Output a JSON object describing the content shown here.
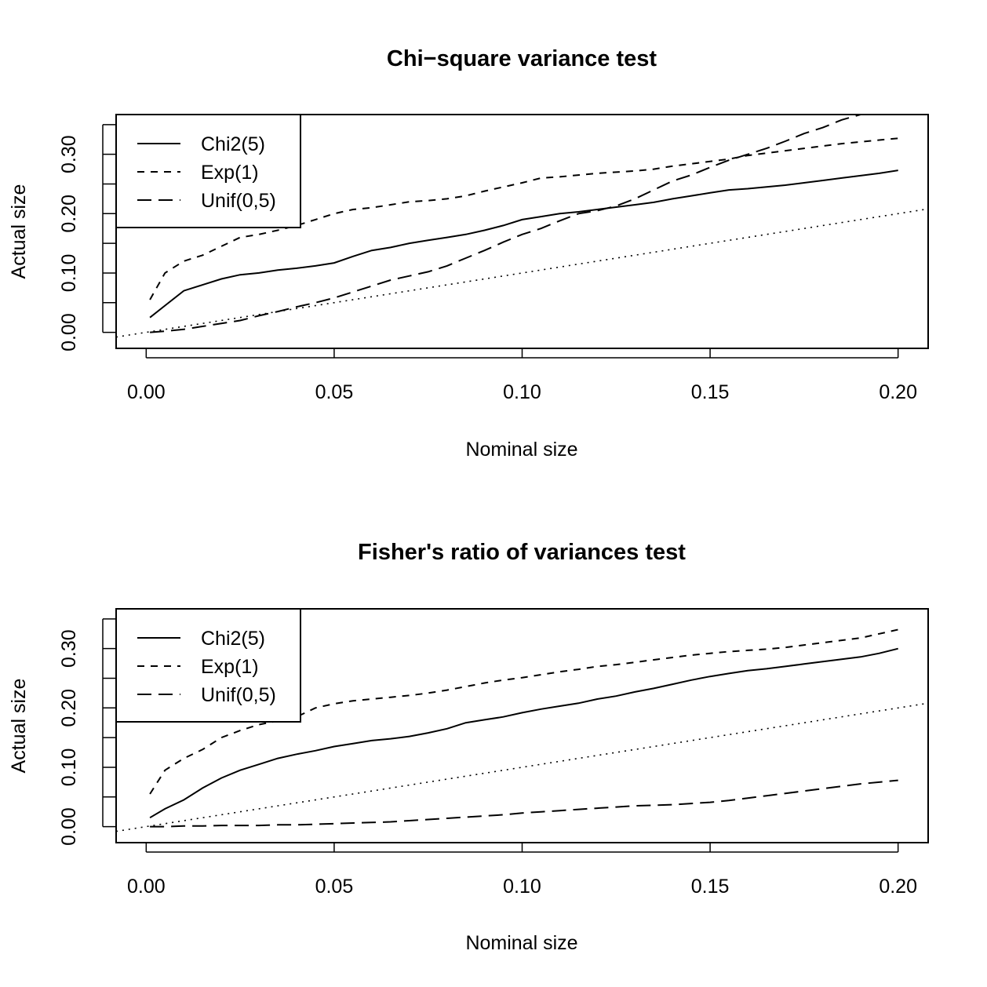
{
  "chart_data": [
    {
      "type": "line",
      "title": "Chi−square variance test",
      "xlabel": "Nominal size",
      "ylabel": "Actual size",
      "xlim": [
        -0.008,
        0.208
      ],
      "ylim": [
        -0.027,
        0.367
      ],
      "x_ticks": [
        0.0,
        0.05,
        0.1,
        0.15,
        0.2
      ],
      "x_tick_labels": [
        "0.00",
        "0.05",
        "0.10",
        "0.15",
        "0.20"
      ],
      "y_ticks": [
        0.0,
        0.05,
        0.1,
        0.15,
        0.2,
        0.25,
        0.3,
        0.35
      ],
      "y_tick_labels": [
        "0.00",
        "",
        "0.10",
        "",
        "0.20",
        "",
        "0.30",
        ""
      ],
      "grid": false,
      "legend": "top-left",
      "reference_line": {
        "x": [
          -0.008,
          0.208
        ],
        "y": [
          -0.008,
          0.208
        ]
      },
      "series": [
        {
          "name": "Chi2(5)",
          "linestyle": "solid",
          "x": [
            0.001,
            0.005,
            0.01,
            0.015,
            0.02,
            0.025,
            0.03,
            0.035,
            0.04,
            0.045,
            0.05,
            0.055,
            0.06,
            0.065,
            0.07,
            0.075,
            0.08,
            0.085,
            0.09,
            0.095,
            0.1,
            0.105,
            0.11,
            0.115,
            0.12,
            0.125,
            0.13,
            0.135,
            0.14,
            0.145,
            0.15,
            0.155,
            0.16,
            0.165,
            0.17,
            0.175,
            0.18,
            0.185,
            0.19,
            0.195,
            0.2
          ],
          "y": [
            0.025,
            0.045,
            0.07,
            0.08,
            0.09,
            0.097,
            0.1,
            0.105,
            0.108,
            0.112,
            0.117,
            0.128,
            0.138,
            0.143,
            0.15,
            0.155,
            0.16,
            0.165,
            0.172,
            0.18,
            0.19,
            0.195,
            0.2,
            0.203,
            0.207,
            0.211,
            0.215,
            0.219,
            0.225,
            0.23,
            0.235,
            0.24,
            0.242,
            0.245,
            0.248,
            0.252,
            0.256,
            0.26,
            0.264,
            0.268,
            0.273
          ]
        },
        {
          "name": "Exp(1)",
          "linestyle": "dashed",
          "x": [
            0.001,
            0.005,
            0.01,
            0.015,
            0.02,
            0.025,
            0.03,
            0.035,
            0.04,
            0.045,
            0.05,
            0.055,
            0.06,
            0.065,
            0.07,
            0.075,
            0.08,
            0.085,
            0.09,
            0.095,
            0.1,
            0.105,
            0.11,
            0.115,
            0.12,
            0.125,
            0.13,
            0.135,
            0.14,
            0.145,
            0.15,
            0.155,
            0.16,
            0.165,
            0.17,
            0.175,
            0.18,
            0.185,
            0.19,
            0.195,
            0.2
          ],
          "y": [
            0.055,
            0.1,
            0.12,
            0.13,
            0.145,
            0.16,
            0.165,
            0.172,
            0.18,
            0.19,
            0.2,
            0.207,
            0.21,
            0.215,
            0.22,
            0.222,
            0.225,
            0.23,
            0.238,
            0.245,
            0.252,
            0.26,
            0.262,
            0.265,
            0.268,
            0.27,
            0.272,
            0.275,
            0.28,
            0.284,
            0.288,
            0.292,
            0.298,
            0.302,
            0.306,
            0.31,
            0.314,
            0.318,
            0.321,
            0.324,
            0.327
          ]
        },
        {
          "name": "Unif(0,5)",
          "linestyle": "longdash",
          "x": [
            0.001,
            0.005,
            0.01,
            0.015,
            0.02,
            0.025,
            0.03,
            0.035,
            0.04,
            0.045,
            0.05,
            0.055,
            0.06,
            0.065,
            0.07,
            0.075,
            0.08,
            0.085,
            0.09,
            0.095,
            0.1,
            0.105,
            0.11,
            0.115,
            0.12,
            0.125,
            0.13,
            0.135,
            0.14,
            0.145,
            0.15,
            0.155,
            0.16,
            0.165,
            0.17,
            0.175,
            0.18,
            0.185,
            0.19
          ],
          "y": [
            0.0,
            0.002,
            0.005,
            0.01,
            0.015,
            0.02,
            0.028,
            0.035,
            0.043,
            0.05,
            0.058,
            0.068,
            0.078,
            0.088,
            0.095,
            0.102,
            0.112,
            0.125,
            0.138,
            0.152,
            0.165,
            0.175,
            0.188,
            0.2,
            0.205,
            0.213,
            0.225,
            0.24,
            0.255,
            0.265,
            0.278,
            0.29,
            0.3,
            0.31,
            0.322,
            0.335,
            0.345,
            0.358,
            0.367
          ]
        }
      ]
    },
    {
      "type": "line",
      "title": "Fisher's ratio of variances test",
      "xlabel": "Nominal size",
      "ylabel": "Actual size",
      "xlim": [
        -0.008,
        0.208
      ],
      "ylim": [
        -0.027,
        0.367
      ],
      "x_ticks": [
        0.0,
        0.05,
        0.1,
        0.15,
        0.2
      ],
      "x_tick_labels": [
        "0.00",
        "0.05",
        "0.10",
        "0.15",
        "0.20"
      ],
      "y_ticks": [
        0.0,
        0.05,
        0.1,
        0.15,
        0.2,
        0.25,
        0.3,
        0.35
      ],
      "y_tick_labels": [
        "0.00",
        "",
        "0.10",
        "",
        "0.20",
        "",
        "0.30",
        ""
      ],
      "grid": false,
      "legend": "top-left",
      "reference_line": {
        "x": [
          -0.008,
          0.208
        ],
        "y": [
          -0.008,
          0.208
        ]
      },
      "series": [
        {
          "name": "Chi2(5)",
          "linestyle": "solid",
          "x": [
            0.001,
            0.005,
            0.01,
            0.015,
            0.02,
            0.025,
            0.03,
            0.035,
            0.04,
            0.045,
            0.05,
            0.055,
            0.06,
            0.065,
            0.07,
            0.075,
            0.08,
            0.085,
            0.09,
            0.095,
            0.1,
            0.105,
            0.11,
            0.115,
            0.12,
            0.125,
            0.13,
            0.135,
            0.14,
            0.145,
            0.15,
            0.155,
            0.16,
            0.165,
            0.17,
            0.175,
            0.18,
            0.185,
            0.19,
            0.195,
            0.2
          ],
          "y": [
            0.015,
            0.03,
            0.045,
            0.065,
            0.082,
            0.095,
            0.105,
            0.115,
            0.122,
            0.128,
            0.135,
            0.14,
            0.145,
            0.148,
            0.152,
            0.158,
            0.165,
            0.175,
            0.18,
            0.185,
            0.192,
            0.198,
            0.203,
            0.208,
            0.215,
            0.22,
            0.227,
            0.233,
            0.24,
            0.247,
            0.253,
            0.258,
            0.263,
            0.266,
            0.27,
            0.274,
            0.278,
            0.282,
            0.286,
            0.292,
            0.3
          ]
        },
        {
          "name": "Exp(1)",
          "linestyle": "dashed",
          "x": [
            0.001,
            0.005,
            0.01,
            0.015,
            0.02,
            0.025,
            0.03,
            0.035,
            0.04,
            0.045,
            0.05,
            0.055,
            0.06,
            0.065,
            0.07,
            0.075,
            0.08,
            0.085,
            0.09,
            0.095,
            0.1,
            0.105,
            0.11,
            0.115,
            0.12,
            0.125,
            0.13,
            0.135,
            0.14,
            0.145,
            0.15,
            0.155,
            0.16,
            0.165,
            0.17,
            0.175,
            0.18,
            0.185,
            0.19,
            0.195,
            0.2
          ],
          "y": [
            0.055,
            0.095,
            0.115,
            0.13,
            0.15,
            0.162,
            0.172,
            0.178,
            0.185,
            0.2,
            0.207,
            0.212,
            0.215,
            0.218,
            0.221,
            0.225,
            0.23,
            0.236,
            0.242,
            0.247,
            0.251,
            0.256,
            0.261,
            0.265,
            0.27,
            0.273,
            0.277,
            0.281,
            0.285,
            0.289,
            0.292,
            0.295,
            0.297,
            0.299,
            0.302,
            0.306,
            0.31,
            0.314,
            0.318,
            0.325,
            0.332
          ]
        },
        {
          "name": "Unif(0,5)",
          "linestyle": "longdash",
          "x": [
            0.001,
            0.005,
            0.01,
            0.015,
            0.02,
            0.025,
            0.03,
            0.035,
            0.04,
            0.045,
            0.05,
            0.055,
            0.06,
            0.065,
            0.07,
            0.075,
            0.08,
            0.085,
            0.09,
            0.095,
            0.1,
            0.105,
            0.11,
            0.115,
            0.12,
            0.125,
            0.13,
            0.135,
            0.14,
            0.145,
            0.15,
            0.155,
            0.16,
            0.165,
            0.17,
            0.175,
            0.18,
            0.185,
            0.19,
            0.195,
            0.2
          ],
          "y": [
            0.0,
            0.0,
            0.001,
            0.001,
            0.002,
            0.002,
            0.002,
            0.003,
            0.003,
            0.004,
            0.005,
            0.006,
            0.007,
            0.008,
            0.01,
            0.012,
            0.014,
            0.016,
            0.018,
            0.02,
            0.023,
            0.025,
            0.027,
            0.029,
            0.031,
            0.033,
            0.035,
            0.036,
            0.037,
            0.039,
            0.041,
            0.044,
            0.048,
            0.052,
            0.056,
            0.06,
            0.064,
            0.068,
            0.072,
            0.075,
            0.078
          ]
        }
      ]
    }
  ]
}
